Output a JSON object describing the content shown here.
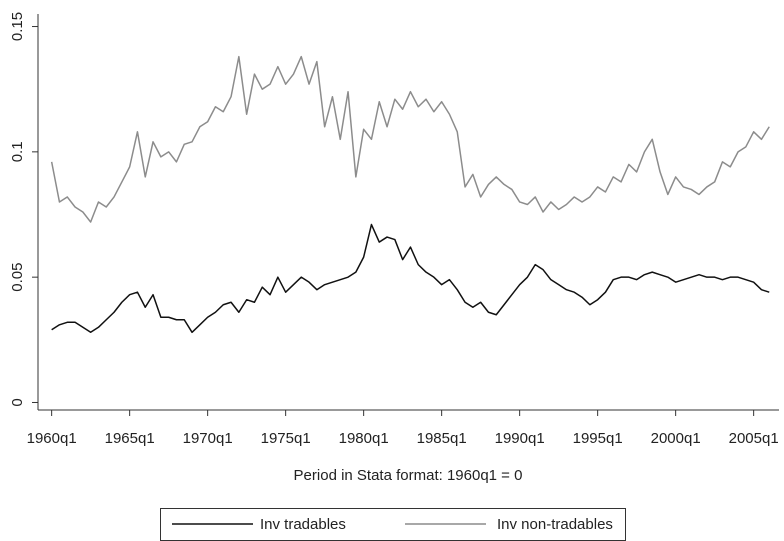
{
  "chart_data": {
    "type": "line",
    "x_label": "Period in Stata format: 1960q1 = 0",
    "x": [
      0,
      2,
      4,
      6,
      8,
      10,
      12,
      14,
      16,
      18,
      20,
      22,
      24,
      26,
      28,
      30,
      32,
      34,
      36,
      38,
      40,
      42,
      44,
      46,
      48,
      50,
      52,
      54,
      56,
      58,
      60,
      62,
      64,
      66,
      68,
      70,
      72,
      74,
      76,
      78,
      80,
      82,
      84,
      86,
      88,
      90,
      92,
      94,
      96,
      98,
      100,
      102,
      104,
      106,
      108,
      110,
      112,
      114,
      116,
      118,
      120,
      122,
      124,
      126,
      128,
      130,
      132,
      134,
      136,
      138,
      140,
      142,
      144,
      146,
      148,
      150,
      152,
      154,
      156,
      158,
      160,
      162,
      164,
      166,
      168,
      170,
      172,
      174,
      176,
      178,
      180,
      182,
      184
    ],
    "series": [
      {
        "name": "Inv tradables",
        "color": "#111111",
        "values": [
          0.029,
          0.031,
          0.032,
          0.032,
          0.03,
          0.028,
          0.03,
          0.033,
          0.036,
          0.04,
          0.043,
          0.044,
          0.038,
          0.043,
          0.034,
          0.034,
          0.033,
          0.033,
          0.028,
          0.031,
          0.034,
          0.036,
          0.039,
          0.04,
          0.036,
          0.041,
          0.04,
          0.046,
          0.043,
          0.05,
          0.044,
          0.047,
          0.05,
          0.048,
          0.045,
          0.047,
          0.048,
          0.049,
          0.05,
          0.052,
          0.058,
          0.071,
          0.064,
          0.066,
          0.065,
          0.057,
          0.062,
          0.055,
          0.052,
          0.05,
          0.047,
          0.049,
          0.045,
          0.04,
          0.038,
          0.04,
          0.036,
          0.035,
          0.039,
          0.043,
          0.047,
          0.05,
          0.055,
          0.053,
          0.049,
          0.047,
          0.045,
          0.044,
          0.042,
          0.039,
          0.041,
          0.044,
          0.049,
          0.05,
          0.05,
          0.049,
          0.051,
          0.052,
          0.051,
          0.05,
          0.048,
          0.049,
          0.05,
          0.051,
          0.05,
          0.05,
          0.049,
          0.05,
          0.05,
          0.049,
          0.048,
          0.045,
          0.044
        ]
      },
      {
        "name": "Inv non-tradables",
        "color": "#8c8c8c",
        "values": [
          0.096,
          0.08,
          0.082,
          0.078,
          0.076,
          0.072,
          0.08,
          0.078,
          0.082,
          0.088,
          0.094,
          0.108,
          0.09,
          0.104,
          0.098,
          0.1,
          0.096,
          0.103,
          0.104,
          0.11,
          0.112,
          0.118,
          0.116,
          0.122,
          0.138,
          0.115,
          0.131,
          0.125,
          0.127,
          0.134,
          0.127,
          0.131,
          0.138,
          0.127,
          0.136,
          0.11,
          0.122,
          0.105,
          0.124,
          0.09,
          0.109,
          0.105,
          0.12,
          0.11,
          0.121,
          0.117,
          0.124,
          0.118,
          0.121,
          0.116,
          0.12,
          0.115,
          0.108,
          0.086,
          0.091,
          0.082,
          0.087,
          0.09,
          0.087,
          0.085,
          0.08,
          0.079,
          0.082,
          0.076,
          0.08,
          0.077,
          0.079,
          0.082,
          0.08,
          0.082,
          0.086,
          0.084,
          0.09,
          0.088,
          0.095,
          0.092,
          0.1,
          0.105,
          0.092,
          0.083,
          0.09,
          0.086,
          0.085,
          0.083,
          0.086,
          0.088,
          0.096,
          0.094,
          0.1,
          0.102,
          0.108,
          0.105,
          0.11
        ]
      }
    ],
    "xlim": [
      -3.5,
      186.5
    ],
    "xticks": [
      {
        "value": 0,
        "label": "1960q1"
      },
      {
        "value": 20,
        "label": "1965q1"
      },
      {
        "value": 40,
        "label": "1970q1"
      },
      {
        "value": 60,
        "label": "1975q1"
      },
      {
        "value": 80,
        "label": "1980q1"
      },
      {
        "value": 100,
        "label": "1985q1"
      },
      {
        "value": 120,
        "label": "1990q1"
      },
      {
        "value": 140,
        "label": "1995q1"
      },
      {
        "value": 160,
        "label": "2000q1"
      },
      {
        "value": 180,
        "label": "2005q1"
      }
    ],
    "ylim": [
      -0.003,
      0.155
    ],
    "yticks": [
      0,
      0.05,
      0.1,
      0.15
    ],
    "grid": false,
    "legend": "bottom"
  }
}
